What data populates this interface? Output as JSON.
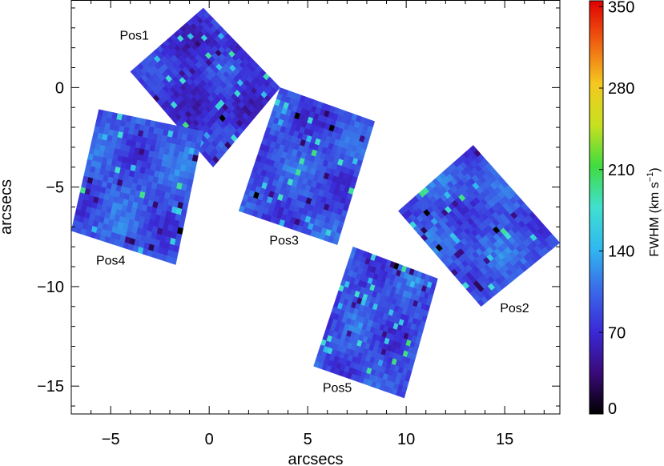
{
  "chart_data": {
    "type": "heatmap",
    "xlabel": "arcsecs",
    "ylabel": "arcsecs",
    "xlim": [
      -7.0,
      17.8
    ],
    "ylim": [
      -16.4,
      4.4
    ],
    "xticks": [
      -5,
      0,
      5,
      10,
      15
    ],
    "yticks": [
      0,
      -5,
      -10,
      -15
    ],
    "xtick_labels": [
      "−5",
      "0",
      "5",
      "10",
      "15"
    ],
    "ytick_labels": [
      "0",
      "−5",
      "−10",
      "−15"
    ],
    "colorbar": {
      "label": "FWHM  (km s",
      "label_superscript": "−1",
      "label_close": ")",
      "range": [
        0,
        355
      ],
      "ticks": [
        0,
        70,
        140,
        210,
        280,
        350
      ],
      "tick_labels": [
        "0",
        "70",
        "140",
        "210",
        "280",
        "350"
      ],
      "colors": [
        "#000000",
        "#3a0a7a",
        "#3a2ad8",
        "#3a6ae8",
        "#30b8f0",
        "#40e0d0",
        "#40dc40",
        "#c8e020",
        "#f4c820",
        "#f06010",
        "#e00000"
      ]
    },
    "pointings": [
      {
        "label": "Pos1",
        "corners": [
          [
            -4.0,
            0.8
          ],
          [
            -0.3,
            4.0
          ],
          [
            3.6,
            0.0
          ],
          [
            0.2,
            -4.0
          ]
        ],
        "base_value": 75,
        "label_at": [
          -3.8,
          2.4
        ]
      },
      {
        "label": "Pos2",
        "corners": [
          [
            9.6,
            -6.2
          ],
          [
            13.4,
            -2.9
          ],
          [
            17.8,
            -7.8
          ],
          [
            13.8,
            -11.0
          ]
        ],
        "base_value": 95,
        "label_at": [
          15.5,
          -11.3
        ]
      },
      {
        "label": "Pos3",
        "corners": [
          [
            1.5,
            -6.2
          ],
          [
            6.5,
            -7.9
          ],
          [
            8.4,
            -1.7
          ],
          [
            3.6,
            0.0
          ]
        ],
        "base_value": 90,
        "label_at": [
          3.8,
          -7.9
        ]
      },
      {
        "label": "Pos4",
        "corners": [
          [
            -7.0,
            -7.2
          ],
          [
            -5.6,
            -1.1
          ],
          [
            -0.3,
            -2.2
          ],
          [
            -1.7,
            -8.9
          ]
        ],
        "base_value": 95,
        "label_at": [
          -5.0,
          -8.9
        ]
      },
      {
        "label": "Pos5",
        "corners": [
          [
            5.3,
            -14.0
          ],
          [
            7.3,
            -8.0
          ],
          [
            11.6,
            -9.6
          ],
          [
            9.9,
            -15.6
          ]
        ],
        "base_value": 90,
        "label_at": [
          6.5,
          -15.3
        ]
      }
    ]
  }
}
